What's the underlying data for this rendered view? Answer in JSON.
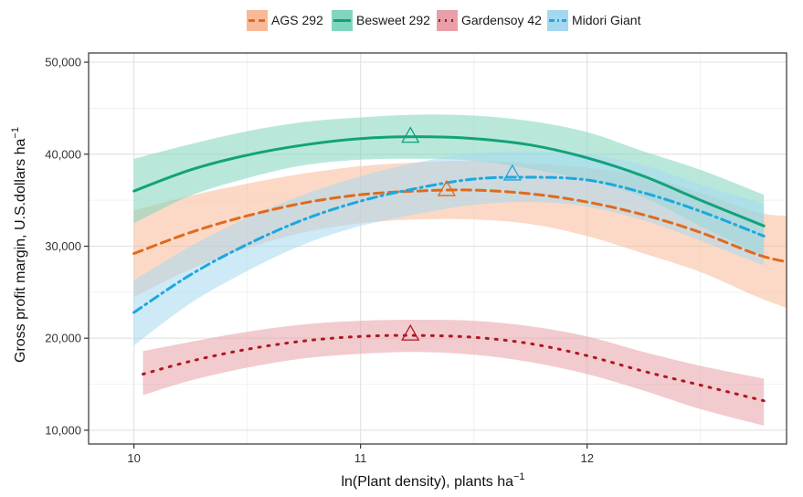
{
  "chart_data": {
    "type": "line",
    "xlabel": "ln(Plant density), plants ha",
    "xlabel_sup": "−1",
    "ylabel": "Gross profit margin, U.S.dollars ha",
    "ylabel_sup": "−1",
    "xlim": [
      9.8,
      12.88
    ],
    "ylim": [
      8500,
      51000
    ],
    "x_ticks": [
      10,
      11,
      12
    ],
    "x_tick_labels": [
      "10",
      "11",
      "12"
    ],
    "y_ticks": [
      10000,
      20000,
      30000,
      40000,
      50000
    ],
    "y_tick_labels": [
      "10,000",
      "20,000",
      "30,000",
      "40,000",
      "50,000"
    ],
    "grid": true,
    "legend_position": "top",
    "series": [
      {
        "name": "AGS 292",
        "color": "#e06a1c",
        "band_color": "#f9b998",
        "dash": "10,6",
        "x": [
          10.0,
          10.25,
          10.5,
          10.75,
          11.0,
          11.25,
          11.5,
          11.75,
          12.0,
          12.25,
          12.5,
          12.75,
          12.88
        ],
        "y": [
          29200,
          31500,
          33300,
          34700,
          35600,
          36000,
          36100,
          35700,
          34800,
          33400,
          31500,
          29100,
          28300
        ],
        "lower": [
          24500,
          27500,
          29800,
          31500,
          32500,
          32900,
          32900,
          32400,
          31100,
          29200,
          27200,
          24500,
          23300
        ],
        "upper": [
          33900,
          35500,
          36800,
          37900,
          38700,
          39100,
          39300,
          39000,
          38500,
          37600,
          35800,
          33700,
          33300
        ],
        "max_x": 11.38,
        "max_y": 36200
      },
      {
        "name": "Besweet 292",
        "color": "#12a27a",
        "band_color": "#7fd6bd",
        "dash": "",
        "x": [
          10.0,
          10.25,
          10.5,
          10.75,
          11.0,
          11.25,
          11.5,
          11.75,
          12.0,
          12.25,
          12.5,
          12.78
        ],
        "y": [
          36000,
          38300,
          39900,
          41000,
          41700,
          41900,
          41700,
          41000,
          39600,
          37600,
          35000,
          32200
        ],
        "lower": [
          32500,
          35500,
          37400,
          38800,
          39400,
          39500,
          39300,
          38400,
          37200,
          35300,
          32200,
          28900
        ],
        "upper": [
          39500,
          41100,
          42500,
          43500,
          44000,
          44300,
          44200,
          43600,
          42400,
          40300,
          38300,
          35600
        ],
        "max_x": 11.22,
        "max_y": 42000
      },
      {
        "name": "Gardensoy 42",
        "color": "#b0171f",
        "band_color": "#e8a0a8",
        "dash": "2,8",
        "x": [
          10.04,
          10.25,
          10.5,
          10.75,
          11.0,
          11.25,
          11.5,
          11.75,
          12.0,
          12.25,
          12.5,
          12.78
        ],
        "y": [
          16100,
          17500,
          18800,
          19700,
          20200,
          20300,
          20100,
          19400,
          18100,
          16400,
          14900,
          13200
        ],
        "lower": [
          13800,
          15400,
          16800,
          17800,
          18300,
          18500,
          18200,
          17400,
          16100,
          14300,
          12300,
          10500
        ],
        "upper": [
          18600,
          19600,
          20700,
          21500,
          21900,
          22000,
          21900,
          21300,
          20200,
          18500,
          17000,
          15600
        ],
        "max_x": 11.22,
        "max_y": 20500
      },
      {
        "name": "Midori Giant",
        "color": "#1aa9df",
        "band_color": "#a5d8f0",
        "dash": "10,5,2,5",
        "x": [
          10.0,
          10.25,
          10.5,
          10.75,
          11.0,
          11.25,
          11.5,
          11.75,
          12.0,
          12.25,
          12.5,
          12.78
        ],
        "y": [
          22800,
          26900,
          30200,
          32900,
          34900,
          36300,
          37300,
          37500,
          37200,
          35800,
          33800,
          31100
        ],
        "lower": [
          19200,
          23800,
          27300,
          30200,
          32200,
          33500,
          34500,
          34800,
          34300,
          32800,
          30600,
          27900
        ],
        "upper": [
          26300,
          30000,
          33100,
          35600,
          37600,
          39100,
          40100,
          40300,
          40000,
          38800,
          36700,
          34600
        ],
        "max_x": 11.67,
        "max_y": 37900
      }
    ]
  }
}
